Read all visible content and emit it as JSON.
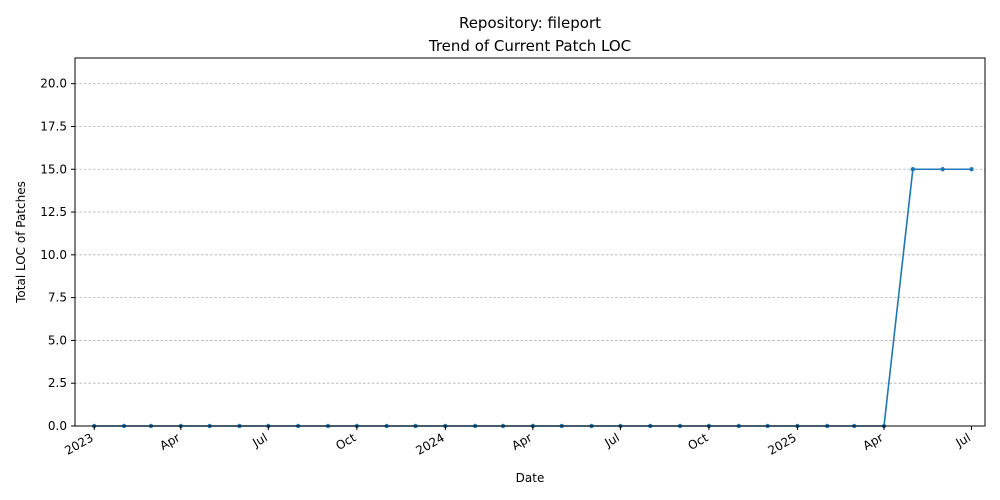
{
  "chart_data": {
    "type": "line",
    "title": "Repository: fileport",
    "subtitle": "Trend of Current Patch LOC",
    "xlabel": "Date",
    "ylabel": "Total LOC of Patches",
    "ylim": [
      0,
      21.5
    ],
    "xlim": [
      "2022-12-12",
      "2025-07-15"
    ],
    "grid": "y",
    "y_ticks": [
      "0.0",
      "2.5",
      "5.0",
      "7.5",
      "10.0",
      "12.5",
      "15.0",
      "17.5",
      "20.0"
    ],
    "x_ticks": [
      {
        "date": "2023-01-01",
        "label": "2023"
      },
      {
        "date": "2023-04-01",
        "label": "Apr"
      },
      {
        "date": "2023-07-01",
        "label": "Jul"
      },
      {
        "date": "2023-10-01",
        "label": "Oct"
      },
      {
        "date": "2024-01-01",
        "label": "2024"
      },
      {
        "date": "2024-04-01",
        "label": "Apr"
      },
      {
        "date": "2024-07-01",
        "label": "Jul"
      },
      {
        "date": "2024-10-01",
        "label": "Oct"
      },
      {
        "date": "2025-01-01",
        "label": "2025"
      },
      {
        "date": "2025-04-01",
        "label": "Apr"
      },
      {
        "date": "2025-07-01",
        "label": "Jul"
      }
    ],
    "series": [
      {
        "color": "#1f77b4",
        "points": [
          {
            "x": "2023-01-01",
            "y": 0
          },
          {
            "x": "2023-02-01",
            "y": 0
          },
          {
            "x": "2023-03-01",
            "y": 0
          },
          {
            "x": "2023-04-01",
            "y": 0
          },
          {
            "x": "2023-05-01",
            "y": 0
          },
          {
            "x": "2023-06-01",
            "y": 0
          },
          {
            "x": "2023-07-01",
            "y": 0
          },
          {
            "x": "2023-08-01",
            "y": 0
          },
          {
            "x": "2023-09-01",
            "y": 0
          },
          {
            "x": "2023-10-01",
            "y": 0
          },
          {
            "x": "2023-11-01",
            "y": 0
          },
          {
            "x": "2023-12-01",
            "y": 0
          },
          {
            "x": "2024-01-01",
            "y": 0
          },
          {
            "x": "2024-02-01",
            "y": 0
          },
          {
            "x": "2024-03-01",
            "y": 0
          },
          {
            "x": "2024-04-01",
            "y": 0
          },
          {
            "x": "2024-05-01",
            "y": 0
          },
          {
            "x": "2024-06-01",
            "y": 0
          },
          {
            "x": "2024-07-01",
            "y": 0
          },
          {
            "x": "2024-08-01",
            "y": 0
          },
          {
            "x": "2024-09-01",
            "y": 0
          },
          {
            "x": "2024-10-01",
            "y": 0
          },
          {
            "x": "2024-11-01",
            "y": 0
          },
          {
            "x": "2024-12-01",
            "y": 0
          },
          {
            "x": "2025-01-01",
            "y": 0
          },
          {
            "x": "2025-02-01",
            "y": 0
          },
          {
            "x": "2025-03-01",
            "y": 0
          },
          {
            "x": "2025-04-01",
            "y": 0
          },
          {
            "x": "2025-05-01",
            "y": 15
          },
          {
            "x": "2025-06-01",
            "y": 15
          },
          {
            "x": "2025-07-01",
            "y": 15
          }
        ]
      }
    ]
  }
}
